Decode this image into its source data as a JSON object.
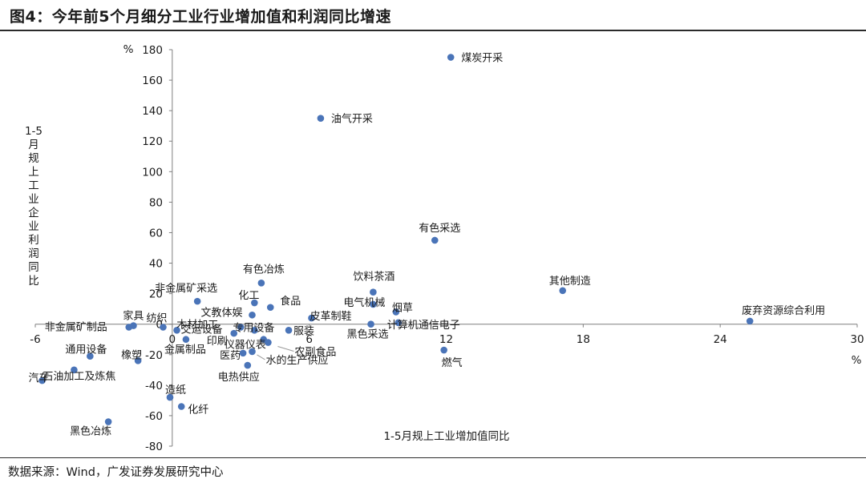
{
  "header": {
    "title": "图4：今年前5个月细分工业行业增加值和利润同比增速"
  },
  "footer": {
    "source": "数据来源：Wind，广发证券发展研究中心"
  },
  "chart_data": {
    "type": "scatter",
    "title": "图4：今年前5个月细分工业行业增加值和利润同比增速",
    "xlabel": "1-5月规上工业增加值同比",
    "ylabel": "1-5月规上工业企业利润同比",
    "x_unit": "%",
    "y_unit": "%",
    "xlim": [
      -6,
      30
    ],
    "ylim": [
      -80,
      180
    ],
    "x_ticks": [
      -6,
      0,
      6,
      12,
      18,
      24,
      30
    ],
    "y_ticks": [
      180,
      160,
      140,
      120,
      100,
      80,
      60,
      40,
      20,
      0,
      -20,
      -40,
      -60,
      -80
    ],
    "grid": false,
    "marker_color": "#4a74b8",
    "points": [
      {
        "label": "煤炭开采",
        "x": 12.2,
        "y": 175
      },
      {
        "label": "油气开采",
        "x": 6.5,
        "y": 135
      },
      {
        "label": "有色采选",
        "x": 11.5,
        "y": 55
      },
      {
        "label": "其他制造",
        "x": 17.1,
        "y": 22
      },
      {
        "label": "废弃资源综合利用",
        "x": 25.3,
        "y": 2
      },
      {
        "label": "有色冶炼",
        "x": 3.9,
        "y": 27
      },
      {
        "label": "饮料茶酒",
        "x": 8.8,
        "y": 21
      },
      {
        "label": "非金属矿采选",
        "x": 1.1,
        "y": 15
      },
      {
        "label": "化工",
        "x": 3.6,
        "y": 14
      },
      {
        "label": "食品",
        "x": 4.3,
        "y": 11
      },
      {
        "label": "电气机械",
        "x": 8.8,
        "y": 13
      },
      {
        "label": "烟草",
        "x": 9.8,
        "y": 8
      },
      {
        "label": "文教体娱",
        "x": 3.5,
        "y": 6
      },
      {
        "label": "皮革制鞋",
        "x": 6.1,
        "y": 4
      },
      {
        "label": "计算机通信电子",
        "x": 9.9,
        "y": 1
      },
      {
        "label": "木材加工",
        "x": 3.0,
        "y": -2
      },
      {
        "label": "专用设备",
        "x": 3.6,
        "y": -4
      },
      {
        "label": "服装",
        "x": 5.1,
        "y": -4
      },
      {
        "label": "黑色采选",
        "x": 8.7,
        "y": 0
      },
      {
        "label": "非金属矿制品",
        "x": -1.9,
        "y": -2
      },
      {
        "label": "家具",
        "x": -1.7,
        "y": -1
      },
      {
        "label": "纺织",
        "x": -0.4,
        "y": -2
      },
      {
        "label": "交运设备",
        "x": 0.2,
        "y": -4
      },
      {
        "label": "金属制品",
        "x": 0.6,
        "y": -10
      },
      {
        "label": "印刷",
        "x": 2.7,
        "y": -6
      },
      {
        "label": "仪器仪表",
        "x": 4.0,
        "y": -10
      },
      {
        "label": "农副食品",
        "x": 4.2,
        "y": -12
      },
      {
        "label": "医药",
        "x": 3.1,
        "y": -19
      },
      {
        "label": "水的生产供应",
        "x": 3.5,
        "y": -18
      },
      {
        "label": "电热供应",
        "x": 3.3,
        "y": -27
      },
      {
        "label": "通用设备",
        "x": -3.6,
        "y": -21
      },
      {
        "label": "橡塑",
        "x": -1.5,
        "y": -24
      },
      {
        "label": "燃气",
        "x": 11.9,
        "y": -17
      },
      {
        "label": "汽车",
        "x": -5.7,
        "y": -37
      },
      {
        "label": "石油加工及炼焦",
        "x": -4.3,
        "y": -30
      },
      {
        "label": "造纸",
        "x": -0.1,
        "y": -48
      },
      {
        "label": "化纤",
        "x": 0.4,
        "y": -54
      },
      {
        "label": "黑色冶炼",
        "x": -2.8,
        "y": -64
      }
    ]
  }
}
